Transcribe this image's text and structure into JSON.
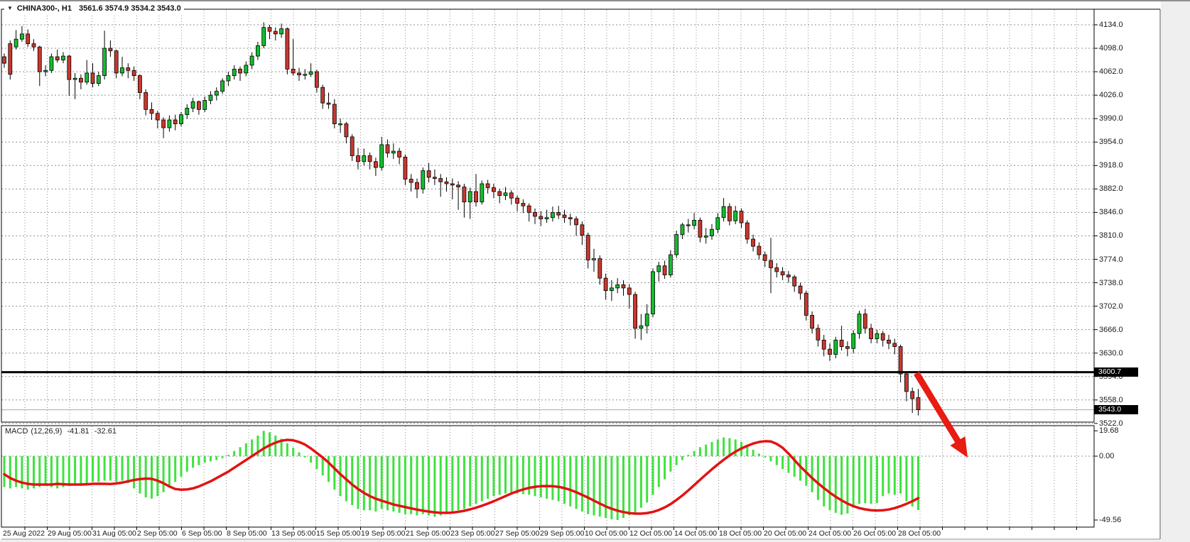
{
  "window_title": {
    "dropdown_icon": "▼",
    "symbol": "CHINA300-, H1",
    "ohlc": "3561.6 3574.9 3534.2 3543.0"
  },
  "indicator": {
    "name": "MACD",
    "params": "(12,26,9)",
    "macd_value": "-41.81",
    "signal_value": "-32.61"
  },
  "price_axis": {
    "ticks": [
      "4134.0",
      "4098.0",
      "4062.0",
      "4026.0",
      "3990.0",
      "3954.0",
      "3918.0",
      "3882.0",
      "3846.0",
      "3810.0",
      "3774.0",
      "3738.0",
      "3702.0",
      "3666.0",
      "3630.0",
      "3594.0",
      "3558.0",
      "3522.0"
    ],
    "marker_badge": "3600.7",
    "current_badge": "3543.0"
  },
  "macd_axis": {
    "ticks": [
      "19.68",
      "0.00",
      "-49.56"
    ]
  },
  "time_axis": {
    "labels": [
      "25 Aug 2022",
      "29 Aug 05:00",
      "31 Aug 05:00",
      "2 Sep 05:00",
      "6 Sep 05:00",
      "8 Sep 05:00",
      "13 Sep 05:00",
      "15 Sep 05:00",
      "19 Sep 05:00",
      "21 Sep 05:00",
      "23 Sep 05:00",
      "27 Sep 05:00",
      "29 Sep 05:00",
      "10 Oct 05:00",
      "12 Oct 05:00",
      "14 Oct 05:00",
      "18 Oct 05:00",
      "20 Oct 05:00",
      "24 Oct 05:00",
      "26 Oct 05:00",
      "28 Oct 05:00"
    ]
  },
  "colors": {
    "bull": "#14bd2e",
    "bear": "#c9382e",
    "wick": "#000000",
    "hist": "#3fe23f",
    "signal": "#e31212",
    "grid": "#909090",
    "frame": "#000000",
    "marker_line": "#000000",
    "current_line": "#aaaaaa",
    "arrow": "#e81c12",
    "badge_bg": "#000000",
    "badge_fg": "#ffffff"
  },
  "annotations": {
    "trend_arrow": {
      "direction": "down-right",
      "meaning": "projected price decline",
      "color": "#e81c12"
    }
  },
  "chart_data": [
    {
      "type": "candlestick",
      "title": "CHINA300 H1",
      "ylim": [
        3510,
        4146
      ],
      "price_grid_step": 36,
      "grid": true,
      "horizontal_line": 3600.7,
      "current_price": 3543.0,
      "last_bar": {
        "o": 3561.6,
        "h": 3574.9,
        "l": 3534.2,
        "c": 3543.0
      },
      "candles": [
        [
          4085,
          4090,
          4068,
          4075
        ],
        [
          4105,
          4110,
          4050,
          4058
        ],
        [
          4100,
          4126,
          4096,
          4112
        ],
        [
          4112,
          4132,
          4108,
          4120
        ],
        [
          4120,
          4127,
          4100,
          4105
        ],
        [
          4105,
          4112,
          4094,
          4100
        ],
        [
          4100,
          4102,
          4040,
          4062
        ],
        [
          4062,
          4072,
          4055,
          4064
        ],
        [
          4064,
          4090,
          4060,
          4085
        ],
        [
          4085,
          4096,
          4076,
          4080
        ],
        [
          4080,
          4092,
          4075,
          4086
        ],
        [
          4086,
          4088,
          4025,
          4050
        ],
        [
          4050,
          4060,
          4020,
          4052
        ],
        [
          4052,
          4058,
          4035,
          4046
        ],
        [
          4046,
          4080,
          4042,
          4060
        ],
        [
          4060,
          4075,
          4038,
          4044
        ],
        [
          4044,
          4062,
          4040,
          4056
        ],
        [
          4056,
          4125,
          4050,
          4098
        ],
        [
          4098,
          4110,
          4085,
          4094
        ],
        [
          4094,
          4096,
          4052,
          4060
        ],
        [
          4060,
          4085,
          4055,
          4068
        ],
        [
          4068,
          4075,
          4052,
          4064
        ],
        [
          4064,
          4070,
          4048,
          4056
        ],
        [
          4056,
          4058,
          4020,
          4030
        ],
        [
          4030,
          4035,
          3995,
          4004
        ],
        [
          4004,
          4015,
          3988,
          3998
        ],
        [
          3998,
          4002,
          3975,
          3988
        ],
        [
          3988,
          3992,
          3960,
          3976
        ],
        [
          3976,
          3995,
          3970,
          3988
        ],
        [
          3988,
          3996,
          3972,
          3982
        ],
        [
          3982,
          4000,
          3978,
          3996
        ],
        [
          3996,
          4012,
          3990,
          4006
        ],
        [
          4006,
          4022,
          4000,
          4016
        ],
        [
          4016,
          4018,
          3996,
          4004
        ],
        [
          4004,
          4024,
          4000,
          4018
        ],
        [
          4018,
          4032,
          4012,
          4026
        ],
        [
          4026,
          4038,
          4018,
          4032
        ],
        [
          4032,
          4052,
          4028,
          4048
        ],
        [
          4048,
          4062,
          4040,
          4056
        ],
        [
          4056,
          4072,
          4050,
          4066
        ],
        [
          4066,
          4070,
          4048,
          4060
        ],
        [
          4060,
          4078,
          4055,
          4072
        ],
        [
          4072,
          4092,
          4066,
          4086
        ],
        [
          4086,
          4108,
          4080,
          4102
        ],
        [
          4102,
          4138,
          4098,
          4130
        ],
        [
          4130,
          4134,
          4112,
          4124
        ],
        [
          4124,
          4130,
          4110,
          4120
        ],
        [
          4120,
          4136,
          4114,
          4128
        ],
        [
          4128,
          4130,
          4058,
          4066
        ],
        [
          4066,
          4112,
          4056,
          4060
        ],
        [
          4060,
          4068,
          4048,
          4057
        ],
        [
          4057,
          4066,
          4050,
          4058
        ],
        [
          4058,
          4075,
          4054,
          4062
        ],
        [
          4062,
          4065,
          4030,
          4038
        ],
        [
          4038,
          4042,
          4005,
          4014
        ],
        [
          4014,
          4030,
          4005,
          4012
        ],
        [
          4012,
          4020,
          3975,
          3982
        ],
        [
          3982,
          3990,
          3968,
          3982
        ],
        [
          3982,
          3985,
          3952,
          3962
        ],
        [
          3962,
          3966,
          3925,
          3933
        ],
        [
          3933,
          3945,
          3912,
          3924
        ],
        [
          3924,
          3944,
          3918,
          3933
        ],
        [
          3933,
          3938,
          3912,
          3924
        ],
        [
          3924,
          3930,
          3902,
          3915
        ],
        [
          3915,
          3962,
          3910,
          3950
        ],
        [
          3950,
          3958,
          3930,
          3937
        ],
        [
          3937,
          3952,
          3928,
          3940
        ],
        [
          3940,
          3945,
          3920,
          3931
        ],
        [
          3931,
          3935,
          3888,
          3897
        ],
        [
          3897,
          3905,
          3878,
          3892
        ],
        [
          3892,
          3898,
          3868,
          3882
        ],
        [
          3882,
          3915,
          3875,
          3910
        ],
        [
          3910,
          3922,
          3892,
          3900
        ],
        [
          3900,
          3912,
          3888,
          3898
        ],
        [
          3898,
          3905,
          3870,
          3893
        ],
        [
          3893,
          3900,
          3878,
          3890
        ],
        [
          3890,
          3898,
          3866,
          3888
        ],
        [
          3888,
          3894,
          3850,
          3885
        ],
        [
          3885,
          3890,
          3838,
          3862
        ],
        [
          3862,
          3884,
          3836,
          3878
        ],
        [
          3878,
          3905,
          3855,
          3862
        ],
        [
          3862,
          3895,
          3858,
          3890
        ],
        [
          3890,
          3896,
          3875,
          3884
        ],
        [
          3884,
          3890,
          3868,
          3878
        ],
        [
          3878,
          3882,
          3860,
          3872
        ],
        [
          3872,
          3885,
          3865,
          3876
        ],
        [
          3876,
          3880,
          3858,
          3868
        ],
        [
          3868,
          3872,
          3848,
          3860
        ],
        [
          3860,
          3866,
          3845,
          3856
        ],
        [
          3856,
          3860,
          3832,
          3846
        ],
        [
          3846,
          3852,
          3828,
          3840
        ],
        [
          3840,
          3848,
          3825,
          3836
        ],
        [
          3836,
          3850,
          3830,
          3838
        ],
        [
          3838,
          3855,
          3832,
          3846
        ],
        [
          3846,
          3856,
          3836,
          3842
        ],
        [
          3842,
          3850,
          3830,
          3838
        ],
        [
          3838,
          3844,
          3826,
          3836
        ],
        [
          3836,
          3840,
          3810,
          3827
        ],
        [
          3827,
          3832,
          3796,
          3811
        ],
        [
          3811,
          3815,
          3760,
          3773
        ],
        [
          3773,
          3790,
          3755,
          3775
        ],
        [
          3775,
          3780,
          3735,
          3745
        ],
        [
          3745,
          3752,
          3712,
          3726
        ],
        [
          3726,
          3742,
          3710,
          3730
        ],
        [
          3730,
          3745,
          3722,
          3735
        ],
        [
          3735,
          3742,
          3718,
          3730
        ],
        [
          3730,
          3736,
          3698,
          3720
        ],
        [
          3720,
          3724,
          3652,
          3668
        ],
        [
          3668,
          3690,
          3650,
          3672
        ],
        [
          3672,
          3705,
          3660,
          3690
        ],
        [
          3690,
          3760,
          3685,
          3755
        ],
        [
          3755,
          3770,
          3740,
          3764
        ],
        [
          3764,
          3772,
          3744,
          3750
        ],
        [
          3750,
          3788,
          3746,
          3781
        ],
        [
          3781,
          3818,
          3776,
          3812
        ],
        [
          3812,
          3830,
          3805,
          3827
        ],
        [
          3827,
          3836,
          3815,
          3826
        ],
        [
          3826,
          3845,
          3820,
          3834
        ],
        [
          3834,
          3838,
          3800,
          3808
        ],
        [
          3808,
          3822,
          3798,
          3810
        ],
        [
          3810,
          3828,
          3804,
          3820
        ],
        [
          3820,
          3845,
          3814,
          3838
        ],
        [
          3838,
          3868,
          3832,
          3855
        ],
        [
          3855,
          3860,
          3826,
          3833
        ],
        [
          3833,
          3856,
          3828,
          3848
        ],
        [
          3848,
          3852,
          3822,
          3830
        ],
        [
          3830,
          3834,
          3798,
          3805
        ],
        [
          3805,
          3812,
          3786,
          3794
        ],
        [
          3794,
          3800,
          3774,
          3781
        ],
        [
          3781,
          3786,
          3762,
          3772
        ],
        [
          3772,
          3807,
          3722,
          3761
        ],
        [
          3761,
          3768,
          3746,
          3755
        ],
        [
          3755,
          3762,
          3742,
          3750
        ],
        [
          3750,
          3756,
          3738,
          3747
        ],
        [
          3747,
          3750,
          3724,
          3733
        ],
        [
          3733,
          3738,
          3712,
          3722
        ],
        [
          3722,
          3726,
          3680,
          3688
        ],
        [
          3688,
          3694,
          3660,
          3668
        ],
        [
          3668,
          3674,
          3640,
          3650
        ],
        [
          3650,
          3658,
          3625,
          3636
        ],
        [
          3636,
          3645,
          3618,
          3628
        ],
        [
          3628,
          3655,
          3622,
          3650
        ],
        [
          3650,
          3672,
          3634,
          3640
        ],
        [
          3640,
          3648,
          3625,
          3637
        ],
        [
          3637,
          3665,
          3630,
          3660
        ],
        [
          3660,
          3695,
          3652,
          3690
        ],
        [
          3690,
          3698,
          3660,
          3668
        ],
        [
          3668,
          3675,
          3645,
          3652
        ],
        [
          3652,
          3666,
          3645,
          3660
        ],
        [
          3660,
          3664,
          3640,
          3650
        ],
        [
          3650,
          3658,
          3636,
          3645
        ],
        [
          3645,
          3652,
          3628,
          3640
        ],
        [
          3640,
          3643,
          3585,
          3598
        ],
        [
          3598,
          3602,
          3556,
          3571
        ],
        [
          3571,
          3577,
          3538,
          3560
        ],
        [
          3561.6,
          3574.9,
          3534.2,
          3543.0
        ]
      ]
    },
    {
      "type": "macd",
      "params": [
        12,
        26,
        9
      ],
      "ylim": [
        -49.56,
        19.68
      ],
      "current": {
        "macd": -41.81,
        "signal": -32.61
      },
      "histogram": [
        -24,
        -25,
        -24,
        -25,
        -26,
        -25,
        -24,
        -23,
        -24,
        -25,
        -24,
        -23,
        -22,
        -22,
        -21,
        -20,
        -20,
        -19,
        -19,
        -20,
        -19,
        -21,
        -25,
        -29,
        -32,
        -33,
        -31,
        -28,
        -24,
        -20,
        -16,
        -12,
        -9,
        -7,
        -5,
        -4,
        -3,
        -1.5,
        1,
        4,
        7,
        10,
        13,
        16,
        19.68,
        18.5,
        16,
        13.5,
        10,
        6.5,
        3,
        -1,
        -5,
        -10,
        -15,
        -20,
        -26,
        -31,
        -35,
        -38,
        -41,
        -42,
        -42,
        -43,
        -41,
        -42,
        -43,
        -44,
        -45,
        -45,
        -46,
        -45,
        -46,
        -47,
        -46,
        -45,
        -44,
        -42,
        -41,
        -39,
        -37,
        -35,
        -33,
        -31,
        -30,
        -29,
        -28.5,
        -29,
        -29.5,
        -30,
        -31,
        -32,
        -33,
        -34,
        -35,
        -37,
        -39,
        -41,
        -43,
        -45,
        -46,
        -47,
        -48,
        -49,
        -49.56,
        -48,
        -46,
        -44,
        -40,
        -36,
        -30,
        -24,
        -18,
        -12,
        -7,
        -3,
        1,
        4,
        7,
        9,
        11,
        13,
        14.5,
        14,
        13,
        11,
        8,
        5,
        2,
        -1,
        -4,
        -7,
        -10,
        -13,
        -16,
        -19,
        -23,
        -28,
        -34,
        -39,
        -42,
        -44,
        -45.5,
        -44.5,
        -40,
        -37,
        -36.5,
        -37,
        -36.5,
        -31,
        -29,
        -30,
        -29,
        -35,
        -39,
        -41.81
      ],
      "signal": [
        -14,
        -17,
        -19,
        -20.5,
        -21.5,
        -22,
        -22,
        -22,
        -22,
        -21.5,
        -21.8,
        -22,
        -22,
        -22,
        -21.8,
        -21.5,
        -21.4,
        -21.5,
        -21.6,
        -21.2,
        -20.5,
        -19.5,
        -18.5,
        -17.8,
        -17.4,
        -17.6,
        -19,
        -21,
        -23.5,
        -25.5,
        -26,
        -25.8,
        -25,
        -23.5,
        -21.5,
        -19.5,
        -17,
        -14.5,
        -12,
        -9,
        -6,
        -3,
        0,
        3,
        6,
        8.5,
        10.5,
        12,
        12.7,
        12.3,
        11,
        9,
        6,
        2.5,
        -1,
        -5,
        -9.5,
        -14,
        -18,
        -22,
        -25.5,
        -28.5,
        -31,
        -33,
        -34.5,
        -36,
        -37.5,
        -38.5,
        -39.5,
        -40.5,
        -41.5,
        -42.3,
        -43,
        -43.6,
        -44,
        -44,
        -43.8,
        -43.2,
        -42.4,
        -41.3,
        -40,
        -38.5,
        -36.8,
        -35,
        -33,
        -31,
        -29,
        -27.3,
        -25.8,
        -24.6,
        -23.8,
        -23.3,
        -23.2,
        -23.3,
        -23.8,
        -24.8,
        -26.2,
        -28,
        -30,
        -32.2,
        -34.5,
        -36.8,
        -39,
        -40.8,
        -42.3,
        -43.4,
        -44.2,
        -44.6,
        -44.6,
        -44.2,
        -43.3,
        -41.8,
        -39.8,
        -37.2,
        -34,
        -30.5,
        -26.6,
        -22.5,
        -18.3,
        -14.2,
        -10.2,
        -6.4,
        -2.8,
        0.5,
        3.5,
        6,
        8,
        9.8,
        11,
        11.6,
        11.4,
        9.5,
        6.5,
        2,
        -3,
        -8,
        -12.5,
        -17,
        -21,
        -24.8,
        -28.3,
        -31.5,
        -34.3,
        -36.8,
        -38.8,
        -40.3,
        -41.3,
        -42,
        -42.2,
        -42,
        -41.4,
        -40.3,
        -38.8,
        -37,
        -35,
        -32.61
      ]
    }
  ]
}
